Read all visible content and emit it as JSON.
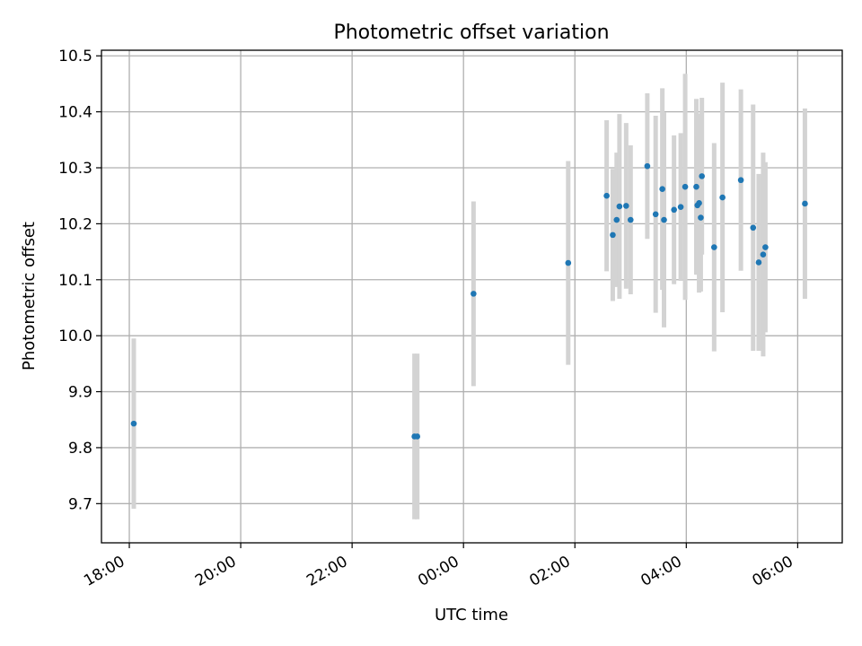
{
  "chart_data": {
    "type": "scatter",
    "title": "Photometric offset variation",
    "xlabel": "UTC time",
    "ylabel": "Photometric offset",
    "x_unit": "hours (UTC, continuing past midnight)",
    "xlim": [
      17.5,
      30.8
    ],
    "ylim": [
      9.63,
      10.51
    ],
    "grid": true,
    "x_ticks": [
      {
        "value": 18,
        "label": "18:00"
      },
      {
        "value": 20,
        "label": "20:00"
      },
      {
        "value": 22,
        "label": "22:00"
      },
      {
        "value": 24,
        "label": "00:00"
      },
      {
        "value": 26,
        "label": "02:00"
      },
      {
        "value": 28,
        "label": "04:00"
      },
      {
        "value": 30,
        "label": "06:00"
      }
    ],
    "y_ticks": [
      {
        "value": 9.7,
        "label": "9.7"
      },
      {
        "value": 9.8,
        "label": "9.8"
      },
      {
        "value": 9.9,
        "label": "9.9"
      },
      {
        "value": 10.0,
        "label": "10.0"
      },
      {
        "value": 10.1,
        "label": "10.1"
      },
      {
        "value": 10.2,
        "label": "10.2"
      },
      {
        "value": 10.3,
        "label": "10.3"
      },
      {
        "value": 10.4,
        "label": "10.4"
      },
      {
        "value": 10.5,
        "label": "10.5"
      }
    ],
    "colors": {
      "point": "#1f77b4",
      "errorbar": "#d3d3d3",
      "grid": "#b0b0b0"
    },
    "points": [
      {
        "x": 18.08,
        "y": 9.843,
        "err": 0.152
      },
      {
        "x": 23.12,
        "y": 9.82,
        "err": 0.148
      },
      {
        "x": 23.17,
        "y": 9.82,
        "err": 0.148
      },
      {
        "x": 24.18,
        "y": 10.075,
        "err": 0.165
      },
      {
        "x": 25.88,
        "y": 10.13,
        "err": 0.182
      },
      {
        "x": 26.57,
        "y": 10.25,
        "err": 0.135
      },
      {
        "x": 26.68,
        "y": 10.18,
        "err": 0.118
      },
      {
        "x": 26.75,
        "y": 10.207,
        "err": 0.12
      },
      {
        "x": 26.8,
        "y": 10.231,
        "err": 0.165
      },
      {
        "x": 26.92,
        "y": 10.232,
        "err": 0.148
      },
      {
        "x": 27.0,
        "y": 10.207,
        "err": 0.133
      },
      {
        "x": 27.3,
        "y": 10.303,
        "err": 0.13
      },
      {
        "x": 27.45,
        "y": 10.217,
        "err": 0.176
      },
      {
        "x": 27.57,
        "y": 10.262,
        "err": 0.18
      },
      {
        "x": 27.6,
        "y": 10.207,
        "err": 0.192
      },
      {
        "x": 27.78,
        "y": 10.225,
        "err": 0.133
      },
      {
        "x": 27.9,
        "y": 10.23,
        "err": 0.132
      },
      {
        "x": 27.98,
        "y": 10.266,
        "err": 0.202
      },
      {
        "x": 28.18,
        "y": 10.266,
        "err": 0.157
      },
      {
        "x": 28.2,
        "y": 10.233,
        "err": 0.124
      },
      {
        "x": 28.23,
        "y": 10.237,
        "err": 0.16
      },
      {
        "x": 28.26,
        "y": 10.211,
        "err": 0.132
      },
      {
        "x": 28.28,
        "y": 10.285,
        "err": 0.14
      },
      {
        "x": 28.5,
        "y": 10.158,
        "err": 0.186
      },
      {
        "x": 28.65,
        "y": 10.247,
        "err": 0.205
      },
      {
        "x": 28.98,
        "y": 10.278,
        "err": 0.162
      },
      {
        "x": 29.2,
        "y": 10.193,
        "err": 0.22
      },
      {
        "x": 29.3,
        "y": 10.131,
        "err": 0.158
      },
      {
        "x": 29.38,
        "y": 10.145,
        "err": 0.182
      },
      {
        "x": 29.42,
        "y": 10.158,
        "err": 0.152
      },
      {
        "x": 30.13,
        "y": 10.236,
        "err": 0.17
      }
    ]
  }
}
